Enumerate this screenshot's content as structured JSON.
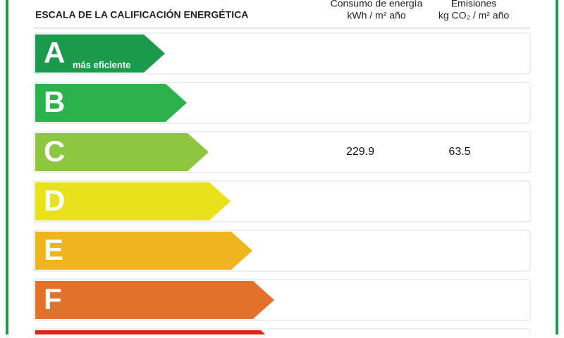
{
  "header": {
    "title": "ESCALA DE LA CALIFICACIÓN ENERGÉTICA"
  },
  "columns": [
    {
      "title": "Consumo de energía",
      "unit": "kWh / m² año"
    },
    {
      "title": "Emisiones",
      "unit": "kg CO₂ / m² año"
    }
  ],
  "rows": [
    {
      "letter": "A",
      "note": "más eficiente",
      "color": "#1b9a4b"
    },
    {
      "letter": "B",
      "color": "#2bb24c"
    },
    {
      "letter": "C",
      "color": "#8dc640",
      "consumo": 229.9,
      "emisiones": 63.5
    },
    {
      "letter": "D",
      "color": "#e9e11c"
    },
    {
      "letter": "E",
      "color": "#f0b41c"
    },
    {
      "letter": "F",
      "color": "#e1712b"
    }
  ]
}
